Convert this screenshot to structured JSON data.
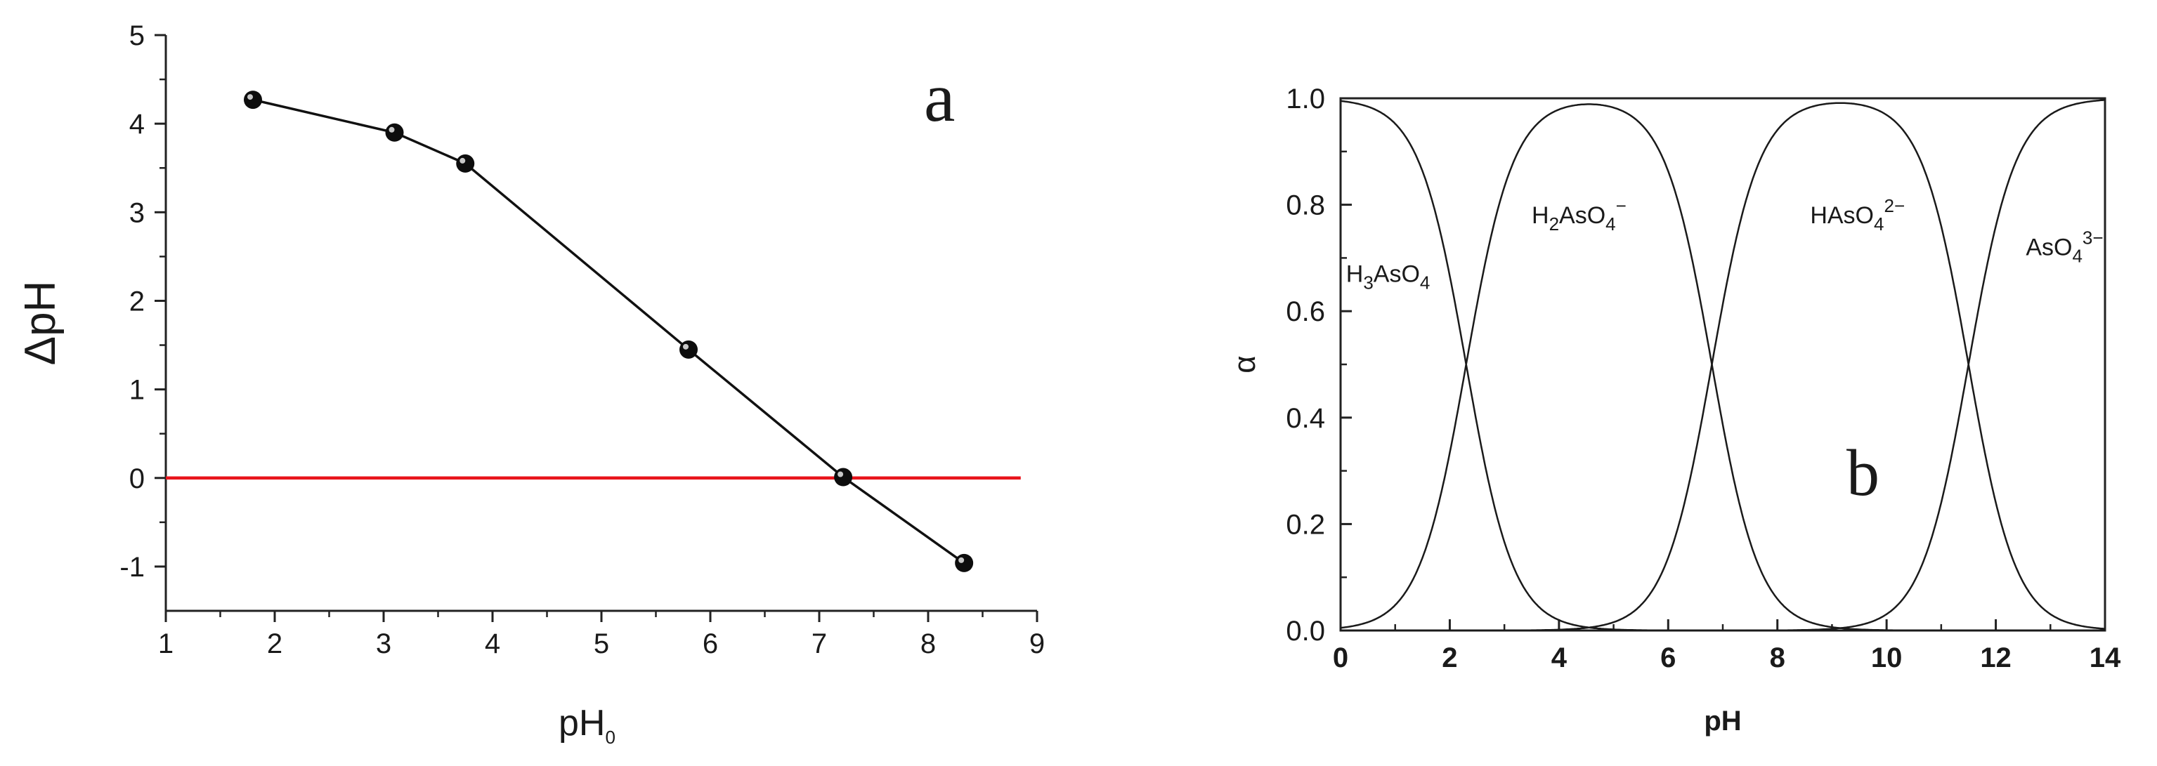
{
  "chart_data": [
    {
      "panel": "a",
      "type": "line",
      "panel_label": "a",
      "xlabel_main": "pH",
      "xlabel_sub": "0",
      "ylabel": "ΔpH",
      "xlim": [
        1,
        9
      ],
      "ylim": [
        -1.5,
        5
      ],
      "xticks": [
        1,
        2,
        3,
        4,
        5,
        6,
        7,
        8,
        9
      ],
      "yticks": [
        -1,
        0,
        1,
        2,
        3,
        4,
        5
      ],
      "grid": false,
      "series": [
        {
          "x": [
            1.8,
            3.1,
            3.75,
            5.8,
            7.22,
            8.33
          ],
          "y": [
            4.27,
            3.9,
            3.55,
            1.45,
            0.01,
            -0.96
          ],
          "color": "#111111"
        }
      ],
      "reference_line": {
        "y": 0,
        "x_range": [
          1,
          8.85
        ],
        "color": "#e8141c"
      }
    },
    {
      "panel": "b",
      "type": "line",
      "panel_label": "b",
      "xlabel": "pH",
      "ylabel": "α",
      "xlim": [
        0,
        14
      ],
      "ylim": [
        0,
        1
      ],
      "xticks": [
        0,
        2,
        4,
        6,
        8,
        10,
        12,
        14
      ],
      "yticks": [
        0.0,
        0.2,
        0.4,
        0.6,
        0.8,
        1.0
      ],
      "grid": false,
      "pKa": [
        2.3,
        6.8,
        11.5
      ],
      "series": [
        {
          "label_parts": [
            [
              "H",
              ""
            ],
            [
              "3",
              "sub"
            ],
            [
              "AsO",
              ""
            ],
            [
              "4",
              "sub"
            ]
          ],
          "label_position": [
            0.1,
            0.655
          ]
        },
        {
          "label_parts": [
            [
              "H",
              ""
            ],
            [
              "2",
              "sub"
            ],
            [
              "AsO",
              ""
            ],
            [
              "4",
              "sub"
            ],
            [
              "−",
              "sup"
            ]
          ],
          "label_position": [
            3.5,
            0.765
          ]
        },
        {
          "label_parts": [
            [
              "HAsO",
              ""
            ],
            [
              "4",
              "sub"
            ],
            [
              "2−",
              "sup"
            ]
          ],
          "label_position": [
            8.6,
            0.765
          ]
        },
        {
          "label_parts": [
            [
              "AsO",
              ""
            ],
            [
              "4",
              "sub"
            ],
            [
              "3−",
              "sup"
            ]
          ],
          "label_position": [
            12.55,
            0.705
          ]
        }
      ],
      "curve_color": "#1a1a1a"
    }
  ]
}
